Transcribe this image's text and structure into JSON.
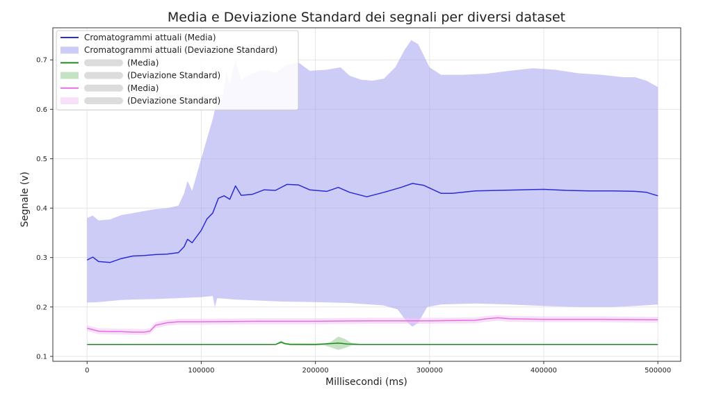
{
  "chart_data": {
    "type": "line",
    "title": "Media e Deviazione Standard dei segnali per diversi dataset",
    "xlabel": "Millisecondi (ms)",
    "ylabel": "Segnale (v)",
    "xlim": [
      -30000,
      520000
    ],
    "ylim": [
      0.09,
      0.765
    ],
    "x_ticks": [
      0,
      100000,
      200000,
      300000,
      400000,
      500000
    ],
    "x_tick_labels": [
      "0",
      "100000",
      "200000",
      "300000",
      "400000",
      "500000"
    ],
    "y_ticks": [
      0.1,
      0.2,
      0.3,
      0.4,
      0.5,
      0.6,
      0.7
    ],
    "y_tick_labels": [
      "0.1",
      "0.2",
      "0.3",
      "0.4",
      "0.5",
      "0.6",
      "0.7"
    ],
    "grid": true,
    "legend_position": "top-left",
    "series": [
      {
        "name": "Cromatogrammi attuali (Media)",
        "kind": "line",
        "color": "#2b2bd6",
        "points": [
          [
            0,
            0.295
          ],
          [
            5000,
            0.301
          ],
          [
            10000,
            0.292
          ],
          [
            20000,
            0.29
          ],
          [
            30000,
            0.298
          ],
          [
            40000,
            0.303
          ],
          [
            50000,
            0.304
          ],
          [
            60000,
            0.306
          ],
          [
            70000,
            0.307
          ],
          [
            80000,
            0.31
          ],
          [
            85000,
            0.322
          ],
          [
            88000,
            0.337
          ],
          [
            92000,
            0.33
          ],
          [
            100000,
            0.355
          ],
          [
            105000,
            0.378
          ],
          [
            110000,
            0.39
          ],
          [
            115000,
            0.42
          ],
          [
            120000,
            0.425
          ],
          [
            125000,
            0.418
          ],
          [
            130000,
            0.445
          ],
          [
            135000,
            0.426
          ],
          [
            145000,
            0.428
          ],
          [
            155000,
            0.437
          ],
          [
            165000,
            0.436
          ],
          [
            175000,
            0.448
          ],
          [
            185000,
            0.447
          ],
          [
            195000,
            0.437
          ],
          [
            210000,
            0.434
          ],
          [
            220000,
            0.442
          ],
          [
            230000,
            0.432
          ],
          [
            245000,
            0.423
          ],
          [
            260000,
            0.432
          ],
          [
            275000,
            0.442
          ],
          [
            285000,
            0.45
          ],
          [
            295000,
            0.446
          ],
          [
            310000,
            0.43
          ],
          [
            320000,
            0.43
          ],
          [
            340000,
            0.435
          ],
          [
            360000,
            0.436
          ],
          [
            380000,
            0.437
          ],
          [
            400000,
            0.438
          ],
          [
            420000,
            0.436
          ],
          [
            440000,
            0.435
          ],
          [
            460000,
            0.435
          ],
          [
            480000,
            0.434
          ],
          [
            490000,
            0.432
          ],
          [
            500000,
            0.425
          ]
        ]
      },
      {
        "name": "Cromatogrammi attuali (Deviazione Standard)",
        "kind": "band",
        "color": "#9999ee",
        "upper": [
          [
            0,
            0.38
          ],
          [
            5000,
            0.385
          ],
          [
            10000,
            0.375
          ],
          [
            20000,
            0.377
          ],
          [
            30000,
            0.386
          ],
          [
            40000,
            0.39
          ],
          [
            50000,
            0.394
          ],
          [
            60000,
            0.398
          ],
          [
            70000,
            0.4
          ],
          [
            80000,
            0.405
          ],
          [
            85000,
            0.43
          ],
          [
            88000,
            0.455
          ],
          [
            92000,
            0.435
          ],
          [
            100000,
            0.5
          ],
          [
            105000,
            0.54
          ],
          [
            110000,
            0.58
          ],
          [
            115000,
            0.63
          ],
          [
            118000,
            0.615
          ],
          [
            122000,
            0.675
          ],
          [
            125000,
            0.652
          ],
          [
            130000,
            0.7
          ],
          [
            135000,
            0.66
          ],
          [
            145000,
            0.673
          ],
          [
            155000,
            0.68
          ],
          [
            165000,
            0.674
          ],
          [
            175000,
            0.69
          ],
          [
            185000,
            0.695
          ],
          [
            195000,
            0.678
          ],
          [
            210000,
            0.68
          ],
          [
            222000,
            0.685
          ],
          [
            230000,
            0.668
          ],
          [
            240000,
            0.66
          ],
          [
            250000,
            0.658
          ],
          [
            260000,
            0.662
          ],
          [
            270000,
            0.685
          ],
          [
            278000,
            0.72
          ],
          [
            284000,
            0.74
          ],
          [
            290000,
            0.732
          ],
          [
            300000,
            0.685
          ],
          [
            310000,
            0.67
          ],
          [
            330000,
            0.67
          ],
          [
            350000,
            0.672
          ],
          [
            370000,
            0.678
          ],
          [
            390000,
            0.683
          ],
          [
            410000,
            0.68
          ],
          [
            430000,
            0.673
          ],
          [
            450000,
            0.67
          ],
          [
            470000,
            0.665
          ],
          [
            480000,
            0.665
          ],
          [
            490000,
            0.658
          ],
          [
            500000,
            0.645
          ]
        ],
        "lower": [
          [
            0,
            0.209
          ],
          [
            10000,
            0.21
          ],
          [
            20000,
            0.212
          ],
          [
            30000,
            0.214
          ],
          [
            40000,
            0.215
          ],
          [
            60000,
            0.216
          ],
          [
            80000,
            0.218
          ],
          [
            100000,
            0.22
          ],
          [
            110000,
            0.222
          ],
          [
            112000,
            0.2
          ],
          [
            114000,
            0.218
          ],
          [
            130000,
            0.215
          ],
          [
            150000,
            0.213
          ],
          [
            170000,
            0.211
          ],
          [
            200000,
            0.21
          ],
          [
            230000,
            0.208
          ],
          [
            260000,
            0.203
          ],
          [
            272000,
            0.195
          ],
          [
            280000,
            0.17
          ],
          [
            285000,
            0.16
          ],
          [
            290000,
            0.168
          ],
          [
            298000,
            0.2
          ],
          [
            310000,
            0.205
          ],
          [
            340000,
            0.207
          ],
          [
            370000,
            0.205
          ],
          [
            400000,
            0.202
          ],
          [
            430000,
            0.2
          ],
          [
            460000,
            0.2
          ],
          [
            480000,
            0.202
          ],
          [
            500000,
            0.205
          ]
        ]
      },
      {
        "name": "(Media)",
        "kind": "line",
        "color": "#1c8a1c",
        "points": [
          [
            0,
            0.124
          ],
          [
            20000,
            0.124
          ],
          [
            50000,
            0.124
          ],
          [
            100000,
            0.124
          ],
          [
            150000,
            0.124
          ],
          [
            165000,
            0.124
          ],
          [
            170000,
            0.129
          ],
          [
            173000,
            0.126
          ],
          [
            178000,
            0.124
          ],
          [
            200000,
            0.124
          ],
          [
            215000,
            0.126
          ],
          [
            220000,
            0.127
          ],
          [
            228000,
            0.125
          ],
          [
            240000,
            0.124
          ],
          [
            300000,
            0.124
          ],
          [
            350000,
            0.124
          ],
          [
            400000,
            0.124
          ],
          [
            450000,
            0.124
          ],
          [
            500000,
            0.124
          ]
        ]
      },
      {
        "name": "(Deviazione Standard)",
        "kind": "band",
        "color": "#7fbf7f",
        "upper": [
          [
            0,
            0.125
          ],
          [
            100000,
            0.125
          ],
          [
            165000,
            0.125
          ],
          [
            170000,
            0.132
          ],
          [
            174000,
            0.127
          ],
          [
            208000,
            0.126
          ],
          [
            214000,
            0.13
          ],
          [
            220000,
            0.14
          ],
          [
            226000,
            0.135
          ],
          [
            232000,
            0.127
          ],
          [
            240000,
            0.125
          ],
          [
            500000,
            0.125
          ]
        ],
        "lower": [
          [
            0,
            0.123
          ],
          [
            100000,
            0.123
          ],
          [
            165000,
            0.123
          ],
          [
            170000,
            0.126
          ],
          [
            174000,
            0.123
          ],
          [
            208000,
            0.122
          ],
          [
            214000,
            0.118
          ],
          [
            220000,
            0.113
          ],
          [
            226000,
            0.117
          ],
          [
            232000,
            0.122
          ],
          [
            240000,
            0.123
          ],
          [
            500000,
            0.123
          ]
        ]
      },
      {
        "name": "(Media)",
        "kind": "line",
        "color": "#e070e0",
        "points": [
          [
            0,
            0.157
          ],
          [
            10000,
            0.151
          ],
          [
            20000,
            0.15
          ],
          [
            30000,
            0.15
          ],
          [
            40000,
            0.149
          ],
          [
            50000,
            0.149
          ],
          [
            55000,
            0.151
          ],
          [
            60000,
            0.163
          ],
          [
            70000,
            0.168
          ],
          [
            80000,
            0.17
          ],
          [
            100000,
            0.17
          ],
          [
            150000,
            0.171
          ],
          [
            200000,
            0.171
          ],
          [
            250000,
            0.172
          ],
          [
            300000,
            0.172
          ],
          [
            340000,
            0.173
          ],
          [
            350000,
            0.176
          ],
          [
            360000,
            0.178
          ],
          [
            370000,
            0.176
          ],
          [
            400000,
            0.175
          ],
          [
            450000,
            0.175
          ],
          [
            500000,
            0.174
          ]
        ]
      },
      {
        "name": "(Deviazione Standard)",
        "kind": "band",
        "color": "#f4c6f4",
        "upper": [
          [
            0,
            0.163
          ],
          [
            10000,
            0.157
          ],
          [
            30000,
            0.156
          ],
          [
            50000,
            0.155
          ],
          [
            55000,
            0.157
          ],
          [
            60000,
            0.169
          ],
          [
            70000,
            0.174
          ],
          [
            80000,
            0.176
          ],
          [
            100000,
            0.176
          ],
          [
            150000,
            0.177
          ],
          [
            200000,
            0.177
          ],
          [
            250000,
            0.178
          ],
          [
            300000,
            0.178
          ],
          [
            340000,
            0.179
          ],
          [
            350000,
            0.182
          ],
          [
            360000,
            0.184
          ],
          [
            370000,
            0.182
          ],
          [
            400000,
            0.181
          ],
          [
            450000,
            0.181
          ],
          [
            500000,
            0.18
          ]
        ],
        "lower": [
          [
            0,
            0.151
          ],
          [
            10000,
            0.145
          ],
          [
            30000,
            0.144
          ],
          [
            50000,
            0.143
          ],
          [
            55000,
            0.145
          ],
          [
            60000,
            0.157
          ],
          [
            70000,
            0.162
          ],
          [
            80000,
            0.164
          ],
          [
            100000,
            0.164
          ],
          [
            150000,
            0.165
          ],
          [
            200000,
            0.165
          ],
          [
            250000,
            0.166
          ],
          [
            300000,
            0.166
          ],
          [
            340000,
            0.167
          ],
          [
            350000,
            0.17
          ],
          [
            360000,
            0.172
          ],
          [
            370000,
            0.17
          ],
          [
            400000,
            0.169
          ],
          [
            450000,
            0.169
          ],
          [
            500000,
            0.168
          ]
        ]
      }
    ]
  }
}
